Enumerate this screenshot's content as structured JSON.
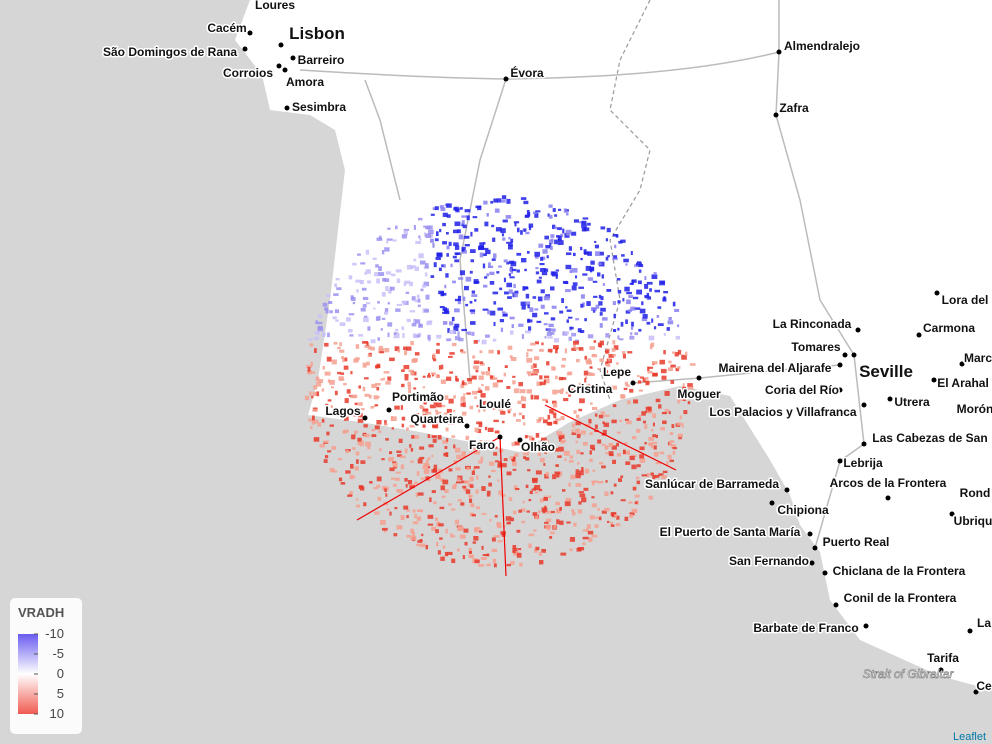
{
  "places": [
    "Loures",
    "Cacém",
    "Lisbon",
    "São Domingos de Rana",
    "Barreiro",
    "Corroios",
    "Amora",
    "Sesimbra",
    "Évora",
    "Almendralejo",
    "Zafra",
    "Lora del",
    "La Rinconada",
    "Carmona",
    "Tomares",
    "Seville",
    "Mairena del Aljarafe",
    "Coria del Río",
    "Utrera",
    "Los Palacios y Villafranca",
    "El Arahal",
    "Morón",
    "Marc",
    "Lepe",
    "Moguer",
    "Cristina",
    "Portimão",
    "Lagos",
    "Quarteira",
    "Loulé",
    "Faro",
    "Olhão",
    "Las Cabezas de San",
    "Lebrija",
    "Arcos de la Frontera",
    "Sanlúcar de Barrameda",
    "Chipiona",
    "Rond",
    "Ubriqu",
    "El Puerto de Santa María",
    "Puerto Real",
    "San Fernando",
    "Chiclana de la Frontera",
    "Conil de la Frontera",
    "Barbate de Franco",
    "Tarifa",
    "La",
    "Ce"
  ],
  "water_label": "Strait of Gibraltar",
  "legend": {
    "title": "VRADH",
    "range": [
      -10,
      10
    ],
    "ticks": [
      -10,
      -5,
      0,
      5,
      10
    ]
  },
  "attribution": "Leaflet"
}
